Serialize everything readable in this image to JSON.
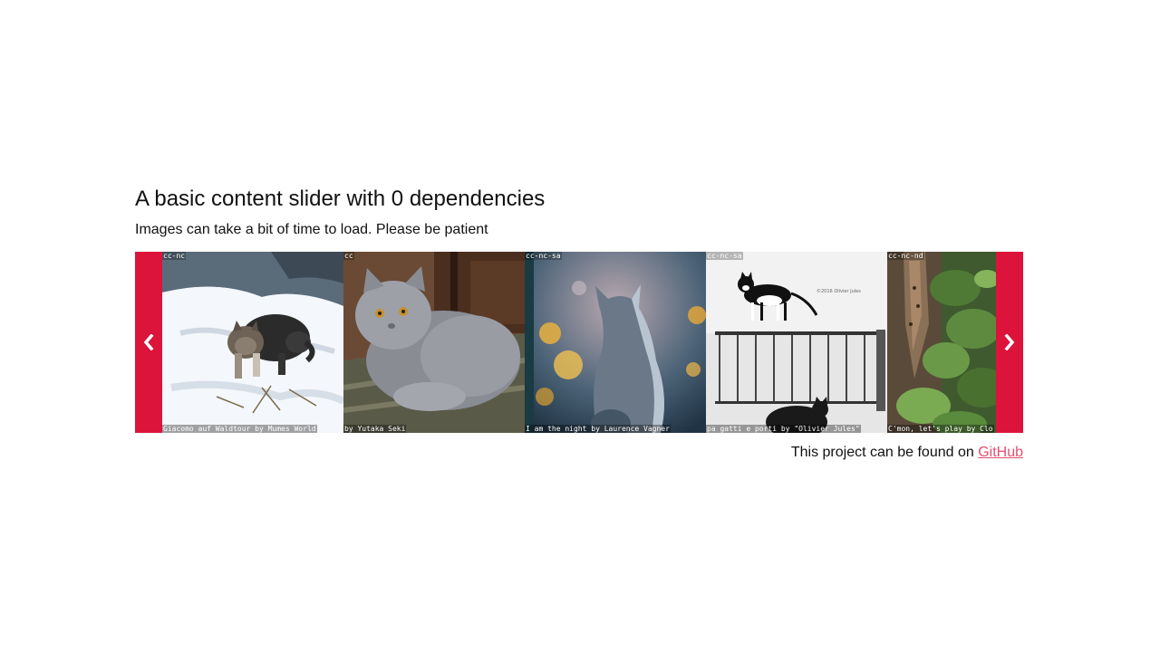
{
  "header": {
    "title": "A basic content slider with 0 dependencies",
    "subtitle": "Images can take a bit of time to load. Please be patient"
  },
  "slider": {
    "accent_color": "#dc143c",
    "prev_icon": "chevron-left-icon",
    "next_icon": "chevron-right-icon",
    "slides": [
      {
        "license": "cc-nc",
        "caption": "Giacomo auf Waldtour by Mumes World",
        "subject": "tabby kitten walking in snow"
      },
      {
        "license": "cc",
        "caption": "by Yutaka Seki",
        "subject": "grey long-haired cat lying on rug"
      },
      {
        "license": "cc-nc-sa",
        "caption": "I am the night by Laurence Vagner",
        "subject": "grey cat silhouette with bokeh lights"
      },
      {
        "license": "cc-nc-sa",
        "caption": "pa gatti e porti by \"Olivier Jules\"",
        "subject": "black and white cats on a railing"
      },
      {
        "license": "cc-nc-nd",
        "caption": "C'mon, let's play by Clo",
        "subject": "lynx kitten among green leaves"
      }
    ]
  },
  "footer": {
    "text": "This project can be found on ",
    "link_label": "GitHub"
  }
}
